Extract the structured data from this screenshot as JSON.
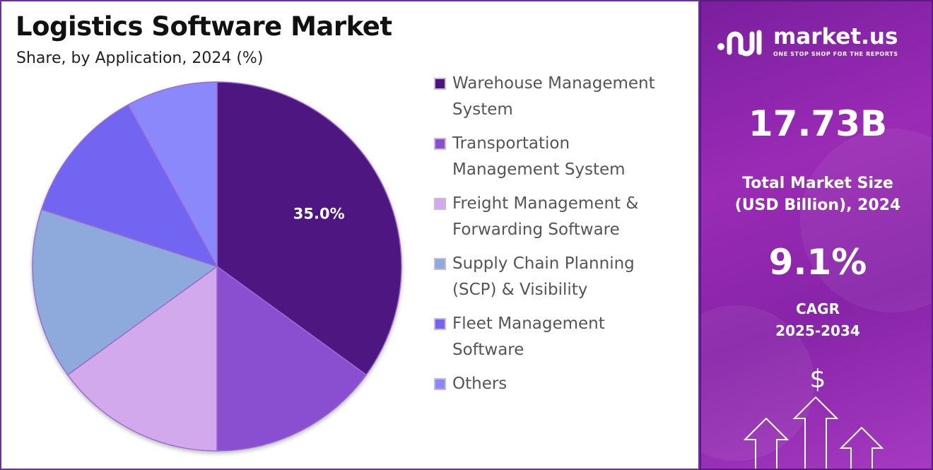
{
  "header": {
    "title": "Logistics Software Market",
    "subtitle": "Share, by Application, 2024 (%)"
  },
  "chart_data": {
    "type": "pie",
    "title": "Logistics Software Market",
    "subtitle": "Share, by Application, 2024 (%)",
    "slices": [
      {
        "name": "Warehouse Management System",
        "value": 35.0,
        "color": "#4d1480",
        "label": "35.0%"
      },
      {
        "name": "Transportation Management System",
        "value": 15.0,
        "color": "#8a4fd0",
        "label": ""
      },
      {
        "name": "Freight Management & Forwarding Software",
        "value": 15.0,
        "color": "#d3a9ee",
        "label": ""
      },
      {
        "name": "Supply Chain Planning (SCP) & Visibility",
        "value": 15.0,
        "color": "#8ea9dc",
        "label": ""
      },
      {
        "name": "Fleet Management Software",
        "value": 12.0,
        "color": "#7165f2",
        "label": ""
      },
      {
        "name": "Others",
        "value": 8.0,
        "color": "#8b88fb",
        "label": ""
      }
    ],
    "legend_position": "right"
  },
  "legend": {
    "items": [
      {
        "label": "Warehouse Management\nSystem",
        "color": "#4d1480"
      },
      {
        "label": "Transportation\nManagement System",
        "color": "#8a4fd0"
      },
      {
        "label": "Freight Management &\nForwarding Software",
        "color": "#d3a9ee"
      },
      {
        "label": "Supply Chain Planning\n(SCP) & Visibility",
        "color": "#8ea9dc"
      },
      {
        "label": "Fleet Management\nSoftware",
        "color": "#7165f2"
      },
      {
        "label": "Others",
        "color": "#8b88fb"
      }
    ]
  },
  "side_panel": {
    "brand": "market.us",
    "tagline": "ONE STOP SHOP FOR THE REPORTS",
    "market_size": "17.73B",
    "market_size_label": "Total Market Size\n(USD Billion), 2024",
    "cagr": "9.1%",
    "cagr_label": "CAGR\n2025-2034",
    "currency_symbol": "$"
  }
}
